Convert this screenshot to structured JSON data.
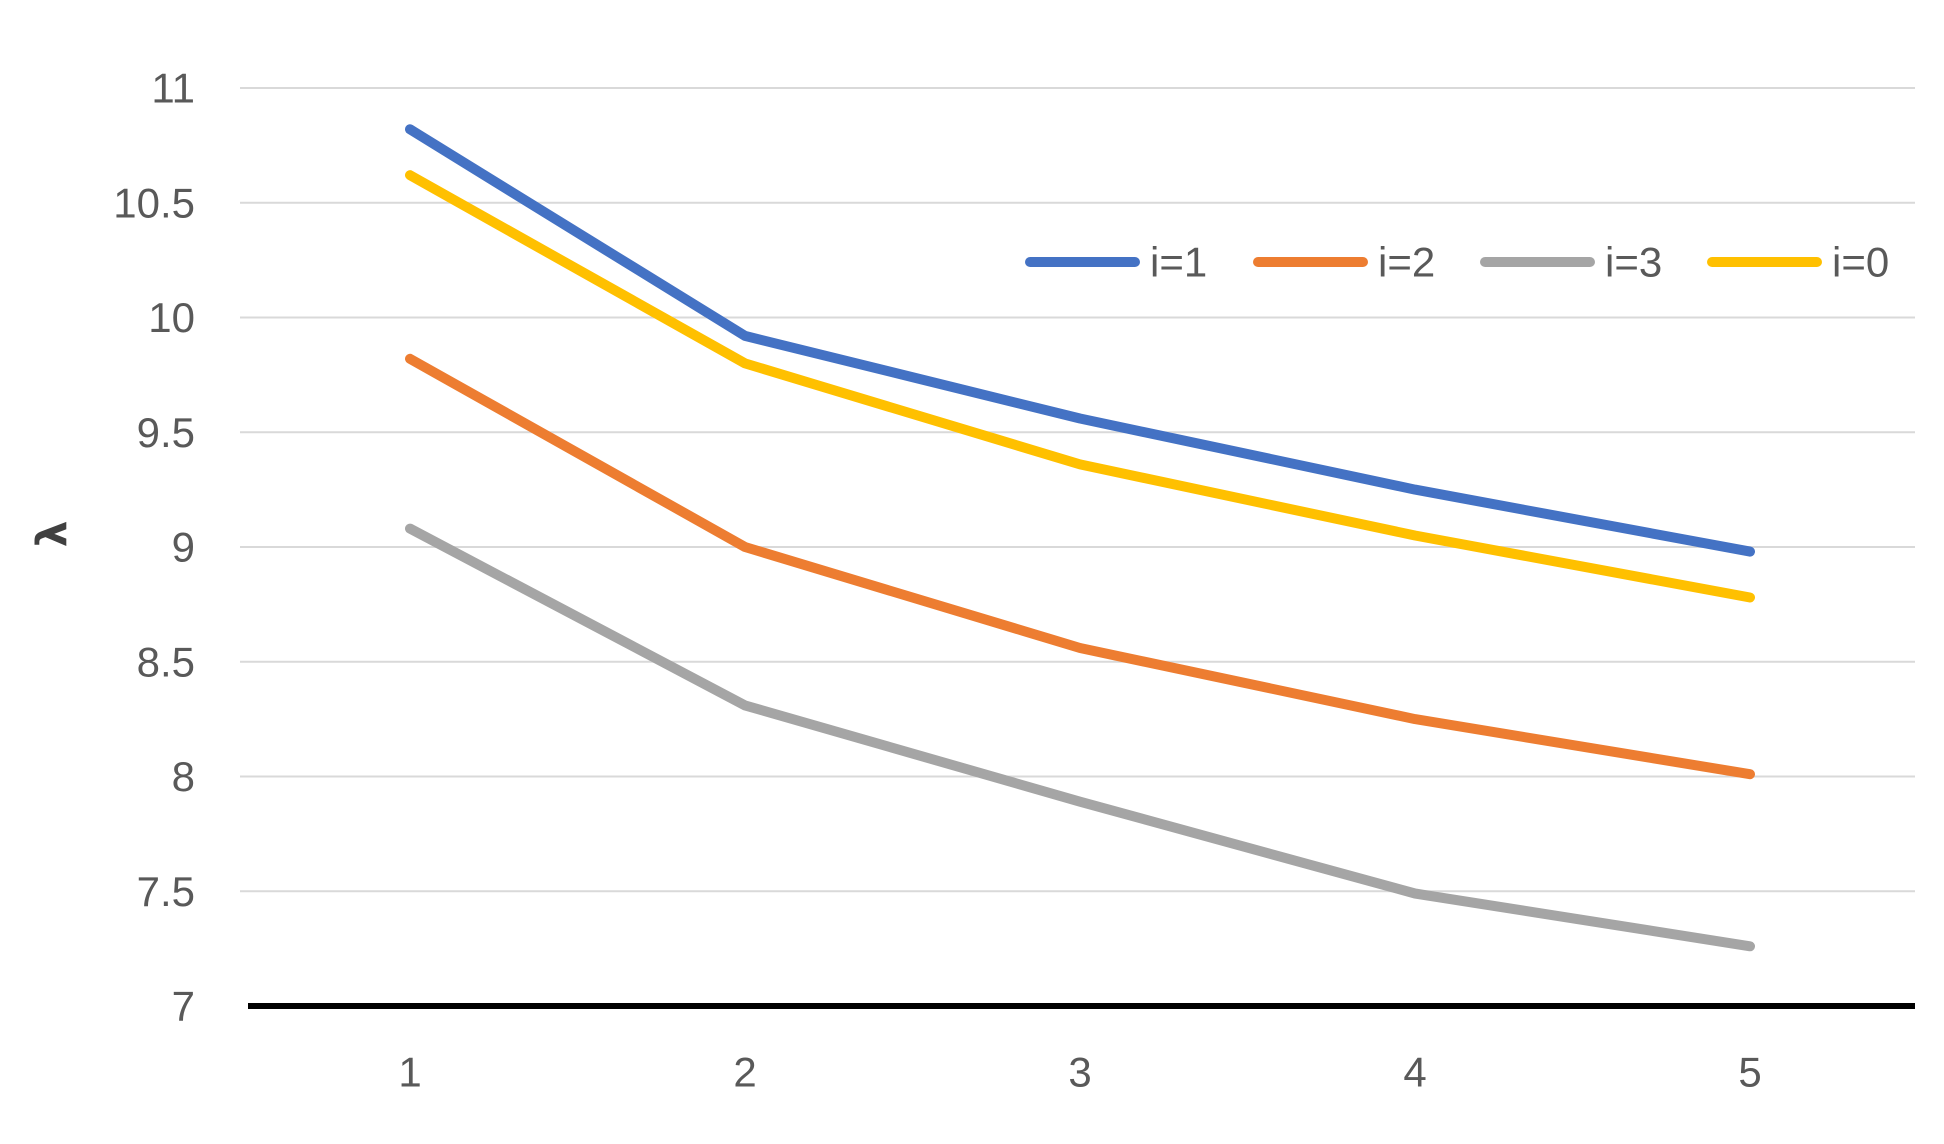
{
  "chart_data": {
    "type": "line",
    "title": "",
    "xlabel": "",
    "ylabel": "λ",
    "categories": [
      "1",
      "2",
      "3",
      "4",
      "5"
    ],
    "ylim": [
      7,
      11
    ],
    "y_ticks": [
      "7",
      "7.5",
      "8",
      "8.5",
      "9",
      "9.5",
      "10",
      "10.5",
      "11"
    ],
    "grid": true,
    "legend_position": "top-right",
    "series": [
      {
        "name": "i=1",
        "color": "#4472C4",
        "values": [
          10.82,
          9.92,
          9.56,
          9.25,
          8.98
        ]
      },
      {
        "name": "i=2",
        "color": "#ED7D31",
        "values": [
          9.82,
          9.0,
          8.56,
          8.25,
          8.01
        ]
      },
      {
        "name": "i=3",
        "color": "#A5A5A5",
        "values": [
          9.08,
          8.31,
          7.89,
          7.49,
          7.26
        ]
      },
      {
        "name": "i=0",
        "color": "#FFC000",
        "values": [
          10.62,
          9.8,
          9.36,
          9.05,
          8.78
        ]
      }
    ]
  }
}
